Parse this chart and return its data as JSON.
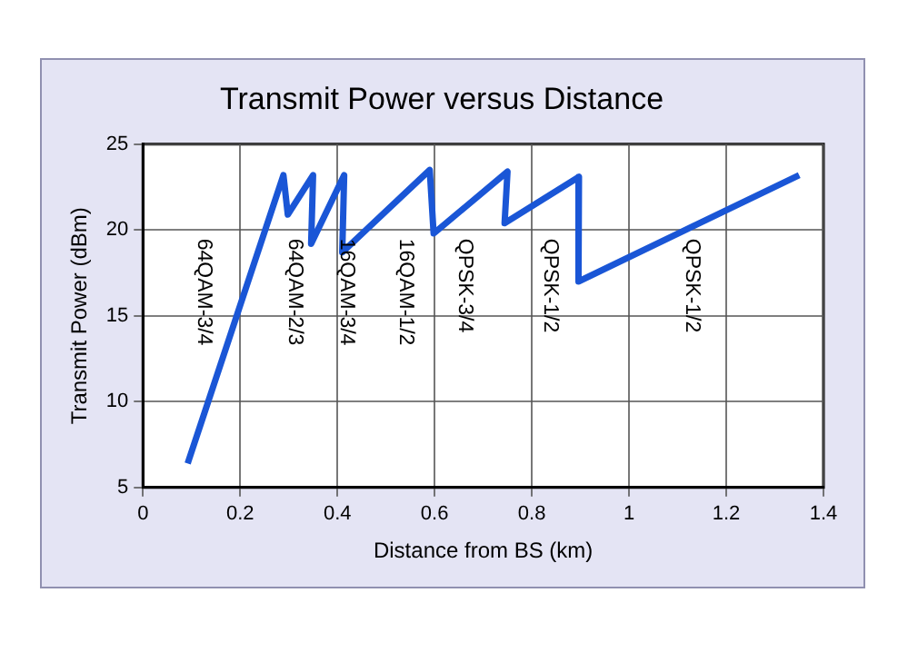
{
  "chart_data": {
    "type": "line",
    "title": "Transmit Power versus Distance",
    "xlabel": "Distance from BS (km)",
    "ylabel": "Transmit Power (dBm)",
    "series": [
      {
        "color": "#1a56d6",
        "x": [
          0.092,
          0.289,
          0.298,
          0.35,
          0.346,
          0.414,
          0.41,
          0.59,
          0.598,
          0.75,
          0.744,
          0.897,
          0.896,
          1.35
        ],
        "values": [
          6.4,
          23.2,
          20.9,
          23.2,
          19.2,
          23.2,
          18.7,
          23.5,
          19.8,
          23.4,
          20.4,
          23.1,
          17.0,
          23.2
        ]
      }
    ],
    "xlim": [
      0,
      1.4
    ],
    "xticks": [
      0,
      0.2,
      0.4,
      0.6,
      0.8,
      1,
      1.2,
      1.4
    ],
    "ylim": [
      5,
      25
    ],
    "yticks": [
      5,
      10,
      15,
      20,
      25
    ],
    "grid": true,
    "legend": false,
    "marker": "none",
    "line_style": "solid",
    "annotations": [
      "64QAM-3/4",
      "64QAM-2/3",
      "16QAM-3/4",
      "16QAM-1/2",
      "QPSK-3/4",
      "QPSK-1/2",
      "QPSK-1/2"
    ]
  }
}
